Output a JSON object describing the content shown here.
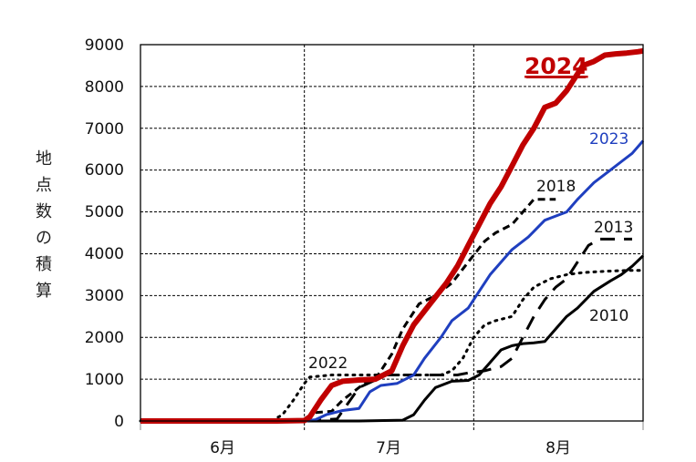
{
  "chart_data": {
    "type": "line",
    "title": "",
    "xlabel": "",
    "ylabel": "地点数の積算",
    "ylim": [
      0,
      9000
    ],
    "yticks": [
      0,
      1000,
      2000,
      3000,
      4000,
      5000,
      6000,
      7000,
      8000,
      9000
    ],
    "xtick_labels": [
      "6月",
      "7月",
      "8月"
    ],
    "x_range_days": [
      0,
      92
    ],
    "x_note": "day index from June 1 (0) to Aug 31 (92); month boundaries at day 30 and day 61",
    "grid": {
      "horizontal": "dashed",
      "vertical": "dashed at month boundaries"
    },
    "legend": "inline labels",
    "series": [
      {
        "name": "2024",
        "color": "#c00000",
        "style": "solid-thick",
        "label_bold_underline": true,
        "x": [
          0,
          25,
          30,
          31,
          33,
          35,
          37,
          40,
          43,
          46,
          48,
          50,
          53,
          56,
          58,
          60,
          62,
          64,
          66,
          68,
          70,
          72,
          74,
          76,
          78,
          80,
          81,
          83,
          85,
          87,
          89,
          91,
          92
        ],
        "values": [
          0,
          0,
          10,
          100,
          500,
          850,
          950,
          980,
          1000,
          1200,
          1800,
          2300,
          2800,
          3300,
          3700,
          4200,
          4700,
          5200,
          5600,
          6100,
          6600,
          7000,
          7500,
          7600,
          7900,
          8300,
          8500,
          8600,
          8750,
          8780,
          8800,
          8830,
          8850
        ]
      },
      {
        "name": "2023",
        "color": "#1f3fbf",
        "style": "solid",
        "x": [
          0,
          30,
          32,
          34,
          37,
          40,
          42,
          44,
          47,
          50,
          52,
          55,
          57,
          60,
          62,
          64,
          66,
          68,
          71,
          74,
          76,
          78,
          80,
          83,
          86,
          88,
          90,
          92
        ],
        "values": [
          0,
          0,
          30,
          150,
          250,
          300,
          700,
          850,
          900,
          1100,
          1500,
          2000,
          2400,
          2700,
          3100,
          3500,
          3800,
          4100,
          4400,
          4800,
          4900,
          5000,
          5300,
          5700,
          6000,
          6200,
          6400,
          6700
        ]
      },
      {
        "name": "2018",
        "color": "#000000",
        "style": "dashed",
        "x": [
          0,
          30,
          32,
          35,
          37,
          39,
          41,
          43,
          46,
          48,
          51,
          54,
          57,
          60,
          63,
          65,
          68,
          70,
          72,
          74,
          76
        ],
        "values": [
          0,
          0,
          200,
          230,
          500,
          700,
          900,
          1000,
          1600,
          2200,
          2800,
          3000,
          3300,
          3800,
          4300,
          4500,
          4700,
          5000,
          5300,
          5300,
          5300
        ]
      },
      {
        "name": "2022",
        "color": "#000000",
        "style": "dotted",
        "x": [
          0,
          24,
          26,
          28,
          30,
          31,
          35,
          40,
          45,
          50,
          55,
          57,
          59,
          61,
          63,
          65,
          68,
          70,
          72,
          75,
          78,
          81,
          85,
          89,
          92
        ],
        "values": [
          0,
          0,
          150,
          500,
          900,
          1050,
          1100,
          1100,
          1100,
          1100,
          1100,
          1200,
          1500,
          2000,
          2300,
          2400,
          2500,
          2900,
          3200,
          3400,
          3500,
          3550,
          3580,
          3600,
          3600
        ]
      },
      {
        "name": "2013",
        "color": "#000000",
        "style": "long-dashed",
        "x": [
          0,
          30,
          36,
          40,
          45,
          50,
          55,
          58,
          60,
          63,
          66,
          68,
          70,
          72,
          74,
          76,
          78,
          80,
          82,
          84,
          87,
          90
        ],
        "values": [
          0,
          0,
          50,
          800,
          1100,
          1100,
          1100,
          1100,
          1150,
          1200,
          1300,
          1500,
          2000,
          2500,
          2900,
          3200,
          3400,
          3800,
          4200,
          4350,
          4350,
          4350
        ]
      },
      {
        "name": "2010",
        "color": "#000000",
        "style": "solid",
        "x": [
          0,
          30,
          40,
          48,
          50,
          52,
          54,
          57,
          60,
          62,
          64,
          66,
          68,
          70,
          72,
          74,
          76,
          78,
          80,
          83,
          86,
          88,
          90,
          92
        ],
        "values": [
          0,
          0,
          0,
          20,
          150,
          500,
          800,
          950,
          970,
          1100,
          1400,
          1700,
          1800,
          1850,
          1870,
          1900,
          2200,
          2500,
          2700,
          3100,
          3350,
          3500,
          3700,
          3950
        ]
      }
    ],
    "annotations": [
      {
        "text": "2024",
        "series": "2024"
      },
      {
        "text": "2023",
        "series": "2023"
      },
      {
        "text": "2018",
        "series": "2018"
      },
      {
        "text": "2013",
        "series": "2013"
      },
      {
        "text": "2022",
        "series": "2022"
      },
      {
        "text": "2010",
        "series": "2010"
      }
    ]
  },
  "labels": {
    "y_axis_chars": [
      "地",
      "点",
      "数",
      "の",
      "積",
      "算"
    ],
    "y_ticks": [
      "0",
      "1000",
      "2000",
      "3000",
      "4000",
      "5000",
      "6000",
      "7000",
      "8000",
      "9000"
    ],
    "x_ticks": [
      "6月",
      "7月",
      "8月"
    ],
    "series_labels": {
      "s2024": "2024",
      "s2023": "2023",
      "s2018": "2018",
      "s2013": "2013",
      "s2022": "2022",
      "s2010": "2010"
    }
  }
}
